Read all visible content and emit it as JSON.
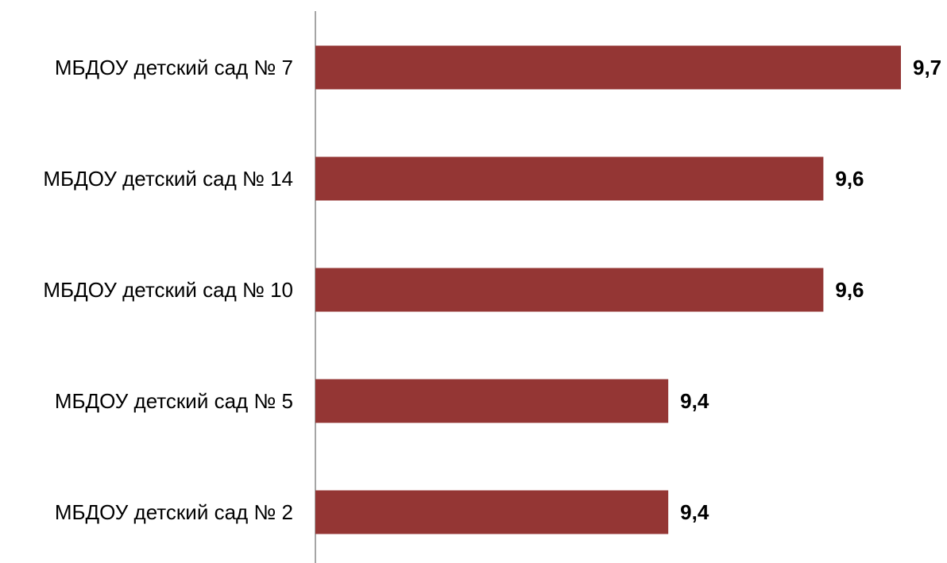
{
  "chart_data": {
    "type": "bar",
    "orientation": "horizontal",
    "categories": [
      "МБДОУ детский сад № 7",
      "МБДОУ детский сад № 14",
      "МБДОУ детский сад № 10",
      "МБДОУ детский сад № 5",
      "МБДОУ детский сад № 2"
    ],
    "values": [
      9.7,
      9.6,
      9.6,
      9.4,
      9.4
    ],
    "value_labels": [
      "9,7",
      "9,6",
      "9,6",
      "9,4",
      "9,4"
    ],
    "title": "",
    "xlabel": "",
    "ylabel": "",
    "xlim": [
      8.945,
      9.7
    ],
    "grid": false,
    "legend": "none",
    "bar_color": "#943634",
    "axis_color": "#878787"
  }
}
